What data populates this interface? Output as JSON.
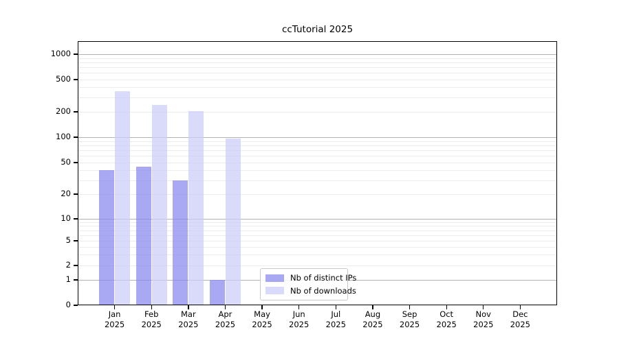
{
  "chart_data": {
    "type": "bar",
    "title": "ccTutorial 2025",
    "categories": [
      "Jan",
      "Feb",
      "Mar",
      "Apr",
      "May",
      "Jun",
      "Jul",
      "Aug",
      "Sep",
      "Oct",
      "Nov",
      "Dec"
    ],
    "year": "2025",
    "series": [
      {
        "name": "Nb of distinct IPs",
        "color": "rgba(136,136,238,0.72)",
        "values": [
          40,
          44,
          30,
          1,
          0,
          0,
          0,
          0,
          0,
          0,
          0,
          0
        ]
      },
      {
        "name": "Nb of downloads",
        "color": "rgba(204,204,248,0.72)",
        "values": [
          360,
          245,
          205,
          96,
          0,
          0,
          0,
          0,
          0,
          0,
          0,
          0
        ]
      }
    ],
    "y_ticks": [
      0,
      1,
      2,
      5,
      10,
      20,
      50,
      100,
      200,
      500,
      1000
    ],
    "yscale": "symlog",
    "ylim": [
      0,
      1400
    ],
    "grid": {
      "major_values": [
        1,
        10,
        100,
        1000
      ],
      "major_color": "#b2b2b2",
      "minor_color": "#ececec"
    },
    "legend_position": "lower-center",
    "frame_color": "#000000",
    "background": "#ffffff"
  }
}
